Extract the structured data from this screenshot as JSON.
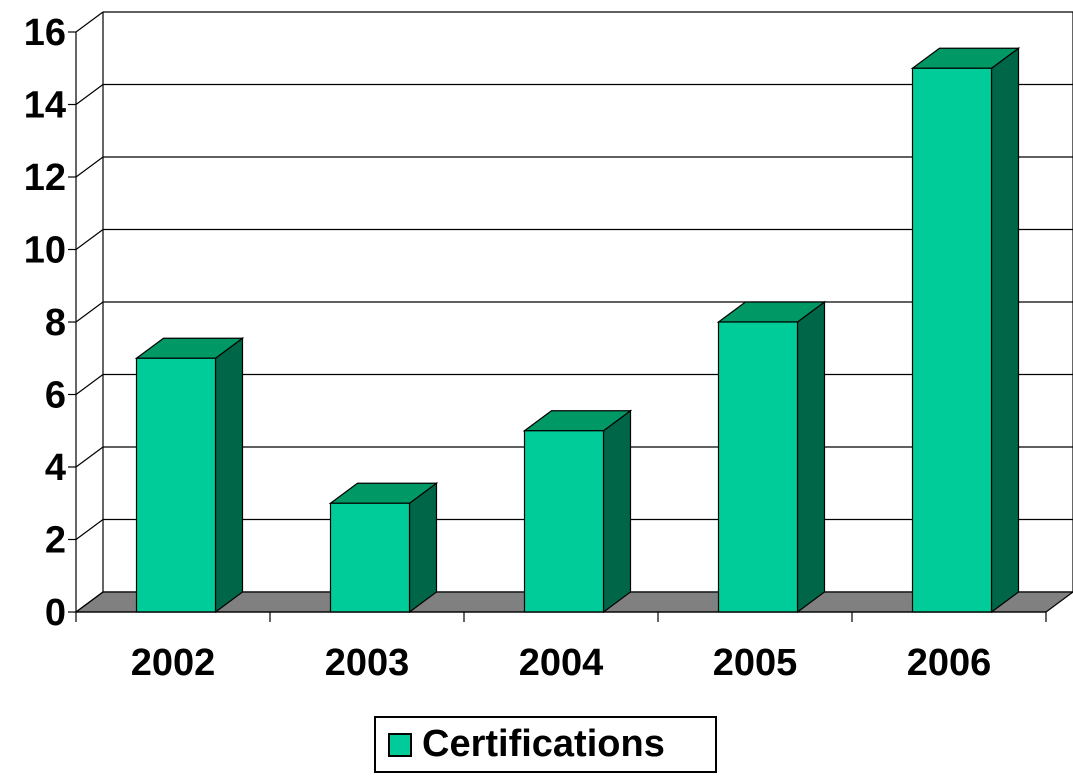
{
  "chart_data": {
    "type": "bar",
    "style": "3d-column",
    "categories": [
      "2002",
      "2003",
      "2004",
      "2005",
      "2006"
    ],
    "series": [
      {
        "name": "Certifications",
        "values": [
          7,
          3,
          5,
          8,
          15
        ]
      }
    ],
    "ylim": [
      0,
      16
    ],
    "yticks": [
      0,
      2,
      4,
      6,
      8,
      10,
      12,
      14,
      16
    ],
    "grid": true,
    "legend": {
      "position": "bottom",
      "label": "Certifications"
    },
    "title": "",
    "xlabel": "",
    "ylabel": ""
  },
  "colors": {
    "bar_front": "#00cc99",
    "bar_top": "#009966",
    "bar_side": "#006648",
    "floor": "#808080",
    "background": "#ffffff"
  }
}
